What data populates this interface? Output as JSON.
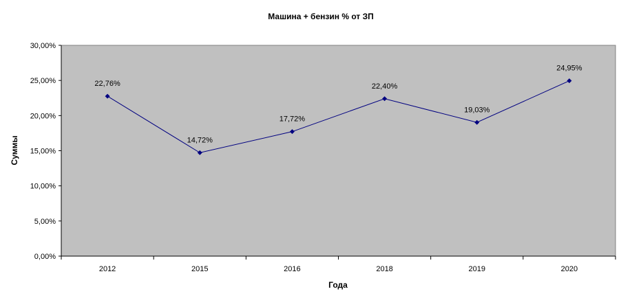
{
  "chart_data": {
    "type": "line",
    "title": "Машина + бензин % от ЗП",
    "xlabel": "Года",
    "ylabel": "Суммы",
    "categories": [
      "2012",
      "2015",
      "2016",
      "2018",
      "2019",
      "2020"
    ],
    "series": [
      {
        "values": [
          22.76,
          14.72,
          17.72,
          22.4,
          19.03,
          24.95
        ],
        "data_labels": [
          "22,76%",
          "14,72%",
          "17,72%",
          "22,40%",
          "19,03%",
          "24,95%"
        ],
        "color": "#000080"
      }
    ],
    "ylim": [
      0,
      30
    ],
    "yticks": [
      0,
      5,
      10,
      15,
      20,
      25,
      30
    ],
    "ytick_labels": [
      "0,00%",
      "5,00%",
      "10,00%",
      "15,00%",
      "20,00%",
      "25,00%",
      "30,00%"
    ],
    "grid": false,
    "legend": "none",
    "plot_background": "#c0c0c0"
  }
}
